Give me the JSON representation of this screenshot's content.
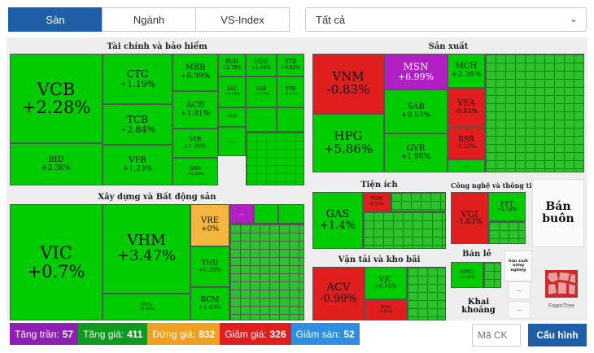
{
  "tabs": [
    {
      "label": "Sàn",
      "active": true
    },
    {
      "label": "Ngành",
      "active": false
    },
    {
      "label": "VS-Index",
      "active": false
    }
  ],
  "filter": {
    "selected": "Tất cả"
  },
  "sectors": {
    "finance": "Tài chính và bảo hiểm",
    "production": "Sản xuất",
    "construction": "Xây dựng và Bất động sản",
    "utility": "Tiện ích",
    "tech": "Công nghệ và thông tin",
    "transport": "Vận tải và kho bãi",
    "retail": "Bán lẻ",
    "wholesale": "Bán buôn",
    "mining": "Khai khoáng",
    "misc": "Sản xuất nông nghiệp"
  },
  "stocks": {
    "VCB": {
      "code": "VCB",
      "change": "+2.28%"
    },
    "CTG": {
      "code": "CTG",
      "change": "+1.19%"
    },
    "TCB": {
      "code": "TCB",
      "change": "+2.84%"
    },
    "BID": {
      "code": "BID",
      "change": "+2.38%"
    },
    "VPB": {
      "code": "VPB",
      "change": "+1.23%"
    },
    "MBB": {
      "code": "MBB",
      "change": "+0.99%"
    },
    "ACB": {
      "code": "ACB",
      "change": "+1.81%"
    },
    "VIB": {
      "code": "VIB",
      "change": "+1.96%"
    },
    "BVH": {
      "code": "BVH",
      "change": "+2.78%"
    },
    "HDB": {
      "code": "HDB",
      "change": "+1.44%"
    },
    "STB": {
      "code": "STB",
      "change": "+0.82%"
    },
    "EIB": {
      "code": "EIB",
      "change": "+0.44%"
    },
    "SSB": {
      "code": "SSB",
      "change": "+0.70%"
    },
    "TPB": {
      "code": "TPB",
      "change": "+2.17%"
    },
    "SHB": {
      "code": "SHB",
      "change": "+0.28%"
    },
    "OCB": {
      "code": "OCB",
      "change": ""
    },
    "VNM": {
      "code": "VNM",
      "change": "-0.83%"
    },
    "MSN": {
      "code": "MSN",
      "change": "+6.99%"
    },
    "MCH": {
      "code": "MCH",
      "change": "+2.36%"
    },
    "HPG": {
      "code": "HPG",
      "change": "+5.86%"
    },
    "SAB": {
      "code": "SAB",
      "change": "+0.53%"
    },
    "VEA": {
      "code": "VEA",
      "change": "-0.93%"
    },
    "GVR": {
      "code": "GVR",
      "change": "+1.96%"
    },
    "BSR": {
      "code": "BSR",
      "change": "-1.21%"
    },
    "VIC": {
      "code": "VIC",
      "change": "+0.7%"
    },
    "VHM": {
      "code": "VHM",
      "change": "+3.47%"
    },
    "VRE": {
      "code": "VRE",
      "change": "+0%"
    },
    "THD": {
      "code": "THD",
      "change": "+0.26%"
    },
    "BCM": {
      "code": "BCM",
      "change": "+1.43%"
    },
    "NVL": {
      "code": "NVL",
      "change": "+0.93%"
    },
    "GAS": {
      "code": "GAS",
      "change": "+1.4%"
    },
    "POW": {
      "code": "POW",
      "change": "-0.70%"
    },
    "VGI": {
      "code": "VGI",
      "change": "-1.63%"
    },
    "FPT": {
      "code": "FPT",
      "change": "+2.16%"
    },
    "ACV": {
      "code": "ACV",
      "change": "-0.99%"
    },
    "VJC": {
      "code": "VJC",
      "change": "+0.16%"
    },
    "HVN": {
      "code": "HVN",
      "change": "-0.61%"
    },
    "MWG": {
      "code": "MWG",
      "change": "+2.54%"
    }
  },
  "ellipsis": "...",
  "legend": [
    {
      "label": "Tăng trần:",
      "value": "57",
      "color": "#8e1fb0"
    },
    {
      "label": "Tăng giá:",
      "value": "411",
      "color": "#0e9a1e"
    },
    {
      "label": "Đứng giá:",
      "value": "832",
      "color": "#f0a020"
    },
    {
      "label": "Giảm giá:",
      "value": "326",
      "color": "#e01e1e"
    },
    {
      "label": "Giảm sàn:",
      "value": "52",
      "color": "#2f8ee0"
    }
  ],
  "search": {
    "placeholder": "Mã CK"
  },
  "config_button": "Cấu hình",
  "brand": "FoamTree"
}
